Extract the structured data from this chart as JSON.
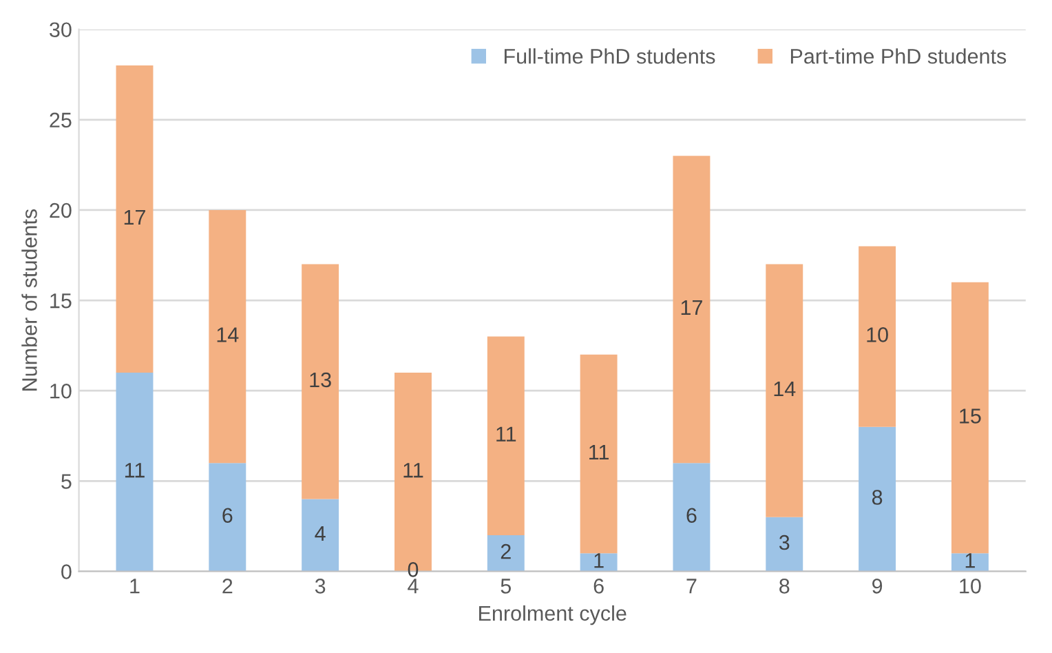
{
  "chart_data": {
    "type": "bar",
    "stacked": true,
    "xlabel": "Enrolment cycle",
    "ylabel": "Number of students",
    "categories": [
      "1",
      "2",
      "3",
      "4",
      "5",
      "6",
      "7",
      "8",
      "9",
      "10"
    ],
    "series": [
      {
        "name": "Full-time PhD students",
        "color": "#9dc3e6",
        "values": [
          11,
          6,
          4,
          0,
          2,
          1,
          6,
          3,
          8,
          1
        ],
        "value_labels": [
          "11",
          "6",
          "4",
          null,
          "2",
          "1",
          "6",
          "3",
          "8",
          "1"
        ]
      },
      {
        "name": "Part-time PhD students",
        "color": "#f4b183",
        "values": [
          17,
          14,
          13,
          11,
          11,
          11,
          17,
          14,
          10,
          15
        ],
        "value_labels": [
          "17",
          "14",
          "13",
          "11",
          "11",
          "11",
          "17",
          "14",
          "10",
          "15"
        ]
      }
    ],
    "annotations": [
      {
        "text": "0",
        "x": "4",
        "y": 0
      }
    ],
    "ylim": [
      0,
      30
    ],
    "yticks": [
      0,
      5,
      10,
      15,
      20,
      25,
      30
    ],
    "grid": "y",
    "legend": "top right"
  }
}
